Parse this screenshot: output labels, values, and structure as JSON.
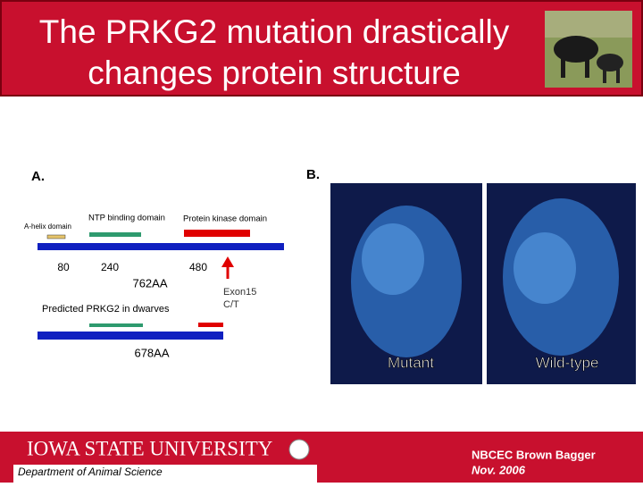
{
  "header": {
    "title_line1": "The PRKG2 mutation drastically",
    "title_line2": "changes protein structure"
  },
  "panel_a": {
    "label": "A.",
    "domains": {
      "a_helix": "A-helix domain",
      "ntp": "NTP binding domain",
      "kinase": "Protein kinase domain"
    },
    "positions": [
      "80",
      "240",
      "480"
    ],
    "normal_length": "762AA",
    "exon_line1": "Exon15",
    "exon_line2": "C/T",
    "dwarf_caption": "Predicted PRKG2 in dwarves",
    "dwarf_length": "678AA"
  },
  "panel_b": {
    "label": "B.",
    "left_caption": "Mutant",
    "right_caption": "Wild-type"
  },
  "footer": {
    "university": "IOWA STATE UNIVERSITY",
    "department": "Department of Animal Science",
    "event": "NBCEC Brown Bagger",
    "date": "Nov. 2006"
  }
}
